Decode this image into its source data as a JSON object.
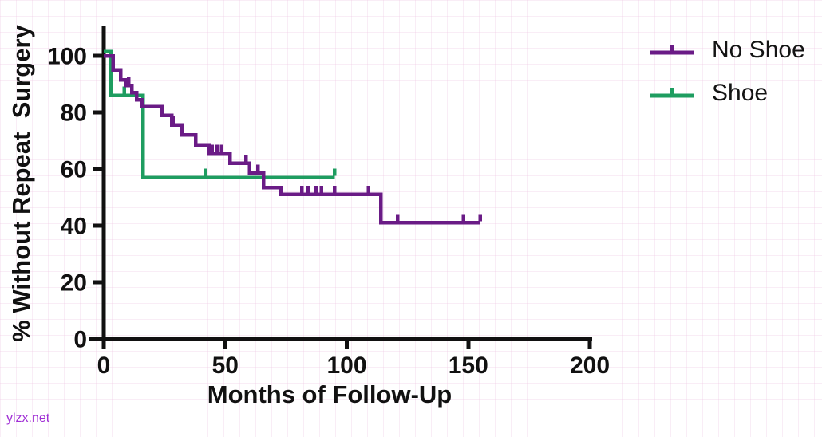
{
  "page": {
    "background": "#ffffff",
    "watermark": {
      "text": "ylzx.net",
      "color": "#A02FD5"
    }
  },
  "chart_data": {
    "type": "line",
    "subtype": "kaplan-meier-step",
    "title": "",
    "xlabel": "Months of Follow-Up",
    "ylabel": "% Without Repeat  Surgery",
    "xlim": [
      0,
      200
    ],
    "ylim": [
      0,
      100
    ],
    "xticks": [
      0,
      50,
      100,
      150,
      200
    ],
    "yticks": [
      0,
      20,
      40,
      60,
      80,
      100
    ],
    "grid": false,
    "legend_position": "top-right",
    "axis_color": "#111111",
    "series": [
      {
        "name": "No Shoe",
        "color": "#6A1B86",
        "steps": [
          [
            0,
            100
          ],
          [
            3.9,
            95
          ],
          [
            6.9,
            91.5
          ],
          [
            9.2,
            89.5
          ],
          [
            11.5,
            87
          ],
          [
            13.5,
            84.5
          ],
          [
            15.8,
            82
          ],
          [
            24,
            79
          ],
          [
            28,
            75.5
          ],
          [
            32.3,
            72
          ],
          [
            37.8,
            68.5
          ],
          [
            43.5,
            65.5
          ],
          [
            52,
            62
          ],
          [
            60,
            58.5
          ],
          [
            65.7,
            53.5
          ],
          [
            73,
            51
          ],
          [
            114,
            41
          ]
        ],
        "end": 155,
        "censor_marks": [
          [
            10.3,
            89.5
          ],
          [
            28.5,
            75.5
          ],
          [
            44.5,
            65.5
          ],
          [
            46.5,
            65.5
          ],
          [
            48.5,
            65.5
          ],
          [
            58.5,
            62
          ],
          [
            63.5,
            58.5
          ],
          [
            81.5,
            51
          ],
          [
            84,
            51
          ],
          [
            87.5,
            51
          ],
          [
            89.5,
            51
          ],
          [
            95,
            51
          ],
          [
            109,
            51
          ],
          [
            121,
            41
          ],
          [
            148,
            41
          ],
          [
            155,
            41
          ]
        ]
      },
      {
        "name": "Shoe",
        "color": "#1E9D60",
        "steps": [
          [
            0,
            101.5
          ],
          [
            3,
            86
          ],
          [
            16.1,
            57
          ]
        ],
        "end": 95,
        "censor_marks": [
          [
            8.5,
            86
          ],
          [
            42,
            57
          ],
          [
            95,
            57
          ]
        ]
      }
    ]
  }
}
